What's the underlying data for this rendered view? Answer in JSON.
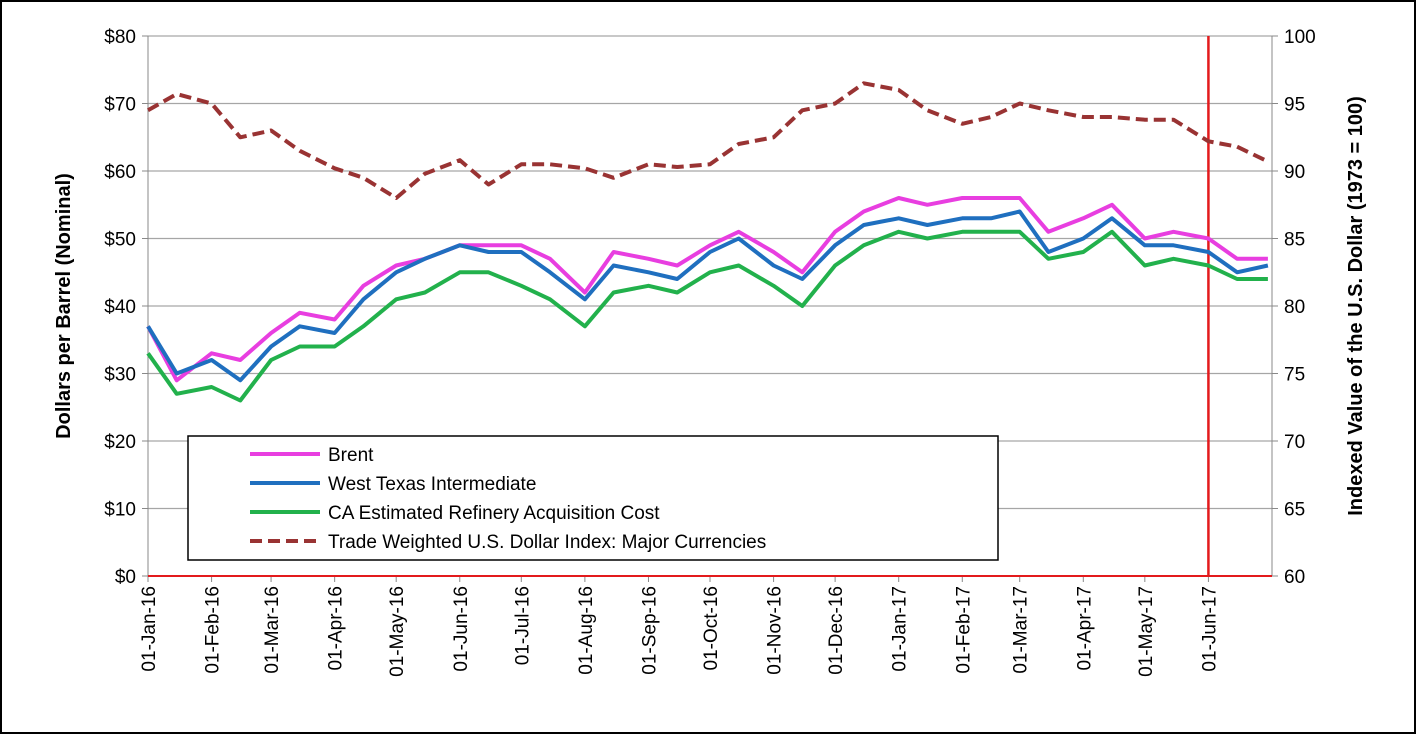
{
  "chart_data": {
    "type": "line",
    "y_label": "Dollars per Barrel (Nominal)",
    "y2_label": "Indexed Value of the U.S. Dollar (1973 = 100)",
    "x": [
      "2016-01-01",
      "2016-01-15",
      "2016-02-01",
      "2016-02-15",
      "2016-03-01",
      "2016-03-15",
      "2016-04-01",
      "2016-04-15",
      "2016-05-01",
      "2016-05-15",
      "2016-06-01",
      "2016-06-15",
      "2016-07-01",
      "2016-07-15",
      "2016-08-01",
      "2016-08-15",
      "2016-09-01",
      "2016-09-15",
      "2016-10-01",
      "2016-10-15",
      "2016-11-01",
      "2016-11-15",
      "2016-12-01",
      "2016-12-15",
      "2017-01-01",
      "2017-01-15",
      "2017-02-01",
      "2017-02-15",
      "2017-03-01",
      "2017-03-15",
      "2017-04-01",
      "2017-04-15",
      "2017-05-01",
      "2017-05-15",
      "2017-06-01",
      "2017-06-15",
      "2017-06-30"
    ],
    "series": [
      {
        "name": "Brent",
        "color": "#e83ee0",
        "values": [
          37,
          29,
          33,
          32,
          36,
          39,
          38,
          43,
          46,
          47,
          49,
          49,
          49,
          47,
          42,
          48,
          47,
          46,
          49,
          51,
          48,
          45,
          51,
          54,
          56,
          55,
          56,
          56,
          56,
          51,
          53,
          55,
          50,
          51,
          50,
          47,
          47
        ]
      },
      {
        "name": "West Texas Intermediate",
        "color": "#1f6fbf",
        "values": [
          37,
          30,
          32,
          29,
          34,
          37,
          36,
          41,
          45,
          47,
          49,
          48,
          48,
          45,
          41,
          46,
          45,
          44,
          48,
          50,
          46,
          44,
          49,
          52,
          53,
          52,
          53,
          53,
          54,
          48,
          50,
          53,
          49,
          49,
          48,
          45,
          46
        ]
      },
      {
        "name": "CA Estimated Refinery Acquisition Cost",
        "color": "#22b14c",
        "values": [
          33,
          27,
          28,
          26,
          32,
          34,
          34,
          37,
          41,
          42,
          45,
          45,
          43,
          41,
          37,
          42,
          43,
          42,
          45,
          46,
          43,
          40,
          46,
          49,
          51,
          50,
          51,
          51,
          51,
          47,
          48,
          51,
          46,
          47,
          46,
          44,
          44
        ]
      },
      {
        "name": "Trade Weighted U.S. Dollar Index: Major Currencies",
        "color": "#993333",
        "dashed": true,
        "axis": "y2",
        "values": [
          94.5,
          95.7,
          95,
          92.5,
          93,
          91.5,
          90.2,
          89.5,
          88,
          89.8,
          90.8,
          89,
          90.5,
          90.5,
          90.2,
          89.5,
          90.5,
          90.3,
          90.5,
          92,
          92.5,
          94.5,
          95,
          96.5,
          96,
          94.5,
          93.5,
          94,
          95,
          94.5,
          94,
          94,
          93.8,
          93.8,
          92.2,
          91.8,
          90.7
        ]
      }
    ],
    "xlim": [
      "2016-01-01",
      "2017-07-02"
    ],
    "xticks": [
      {
        "value": "2016-01-01",
        "label": "01-Jan-16"
      },
      {
        "value": "2016-02-01",
        "label": "01-Feb-16"
      },
      {
        "value": "2016-03-01",
        "label": "01-Mar-16"
      },
      {
        "value": "2016-04-01",
        "label": "01-Apr-16"
      },
      {
        "value": "2016-05-01",
        "label": "01-May-16"
      },
      {
        "value": "2016-06-01",
        "label": "01-Jun-16"
      },
      {
        "value": "2016-07-01",
        "label": "01-Jul-16"
      },
      {
        "value": "2016-08-01",
        "label": "01-Aug-16"
      },
      {
        "value": "2016-09-01",
        "label": "01-Sep-16"
      },
      {
        "value": "2016-10-01",
        "label": "01-Oct-16"
      },
      {
        "value": "2016-11-01",
        "label": "01-Nov-16"
      },
      {
        "value": "2016-12-01",
        "label": "01-Dec-16"
      },
      {
        "value": "2017-01-01",
        "label": "01-Jan-17"
      },
      {
        "value": "2017-02-01",
        "label": "01-Feb-17"
      },
      {
        "value": "2017-03-01",
        "label": "01-Mar-17"
      },
      {
        "value": "2017-04-01",
        "label": "01-Apr-17"
      },
      {
        "value": "2017-05-01",
        "label": "01-May-17"
      },
      {
        "value": "2017-06-01",
        "label": "01-Jun-17"
      }
    ],
    "ylim": [
      0,
      80
    ],
    "yticks": [
      {
        "value": 0,
        "label": "$0"
      },
      {
        "value": 10,
        "label": "$10"
      },
      {
        "value": 20,
        "label": "$20"
      },
      {
        "value": 30,
        "label": "$30"
      },
      {
        "value": 40,
        "label": "$40"
      },
      {
        "value": 50,
        "label": "$50"
      },
      {
        "value": 60,
        "label": "$60"
      },
      {
        "value": 70,
        "label": "$70"
      },
      {
        "value": 80,
        "label": "$80"
      }
    ],
    "y2lim": [
      60,
      100
    ],
    "y2ticks": [
      60,
      65,
      70,
      75,
      80,
      85,
      90,
      95,
      100
    ],
    "grid": true,
    "vline": {
      "x": "2017-06-01",
      "color": "#e31a1c"
    }
  }
}
